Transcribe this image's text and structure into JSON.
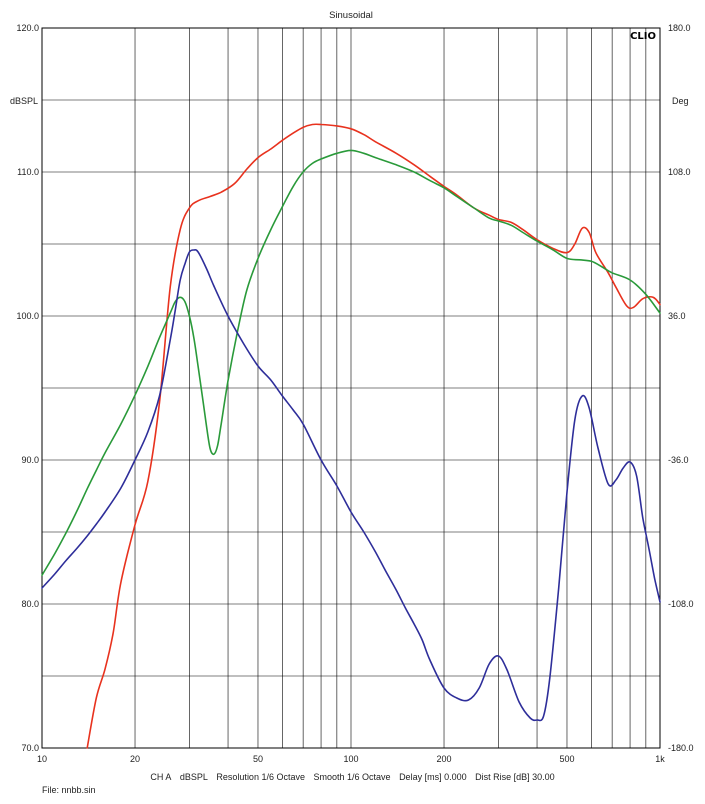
{
  "chart_data": {
    "type": "line",
    "title": "Sinusoidal",
    "brand": "CLIO",
    "x_scale": "log",
    "xlim": [
      10,
      1000
    ],
    "x_ticks": [
      {
        "v": 10,
        "label": "10"
      },
      {
        "v": 20,
        "label": "20"
      },
      {
        "v": 50,
        "label": "50"
      },
      {
        "v": 100,
        "label": "100"
      },
      {
        "v": 200,
        "label": "200"
      },
      {
        "v": 500,
        "label": "500"
      },
      {
        "v": 1000,
        "label": "1k"
      }
    ],
    "ylabel_left": "dBSPL",
    "ylim_left": [
      70,
      120
    ],
    "y_ticks_left": [
      "70.0",
      "80.0",
      "90.0",
      "100.0",
      "110.0",
      "120.0"
    ],
    "ylabel_right": "Deg",
    "ylim_right": [
      -180,
      180
    ],
    "y_ticks_right": [
      "-180.0",
      "-108.0",
      "-36.0",
      "36.0",
      "108.0",
      "180.0"
    ],
    "grid": true,
    "series": [
      {
        "color": "#e8321e",
        "axis": "left",
        "points": [
          [
            14,
            70
          ],
          [
            15,
            73.5
          ],
          [
            16,
            75.5
          ],
          [
            17,
            78
          ],
          [
            18,
            81.5
          ],
          [
            20,
            85.5
          ],
          [
            22,
            88.5
          ],
          [
            24,
            94
          ],
          [
            26,
            102
          ],
          [
            28,
            106
          ],
          [
            30,
            107.5
          ],
          [
            32,
            108
          ],
          [
            35,
            108.3
          ],
          [
            38,
            108.6
          ],
          [
            42,
            109.2
          ],
          [
            46,
            110.2
          ],
          [
            50,
            111
          ],
          [
            55,
            111.6
          ],
          [
            60,
            112.2
          ],
          [
            65,
            112.7
          ],
          [
            70,
            113.1
          ],
          [
            75,
            113.3
          ],
          [
            80,
            113.3
          ],
          [
            90,
            113.2
          ],
          [
            100,
            113
          ],
          [
            110,
            112.6
          ],
          [
            120,
            112.1
          ],
          [
            140,
            111.3
          ],
          [
            160,
            110.5
          ],
          [
            180,
            109.7
          ],
          [
            200,
            109
          ],
          [
            220,
            108.4
          ],
          [
            250,
            107.5
          ],
          [
            280,
            107
          ],
          [
            300,
            106.7
          ],
          [
            330,
            106.5
          ],
          [
            360,
            106
          ],
          [
            400,
            105.3
          ],
          [
            450,
            104.7
          ],
          [
            500,
            104.4
          ],
          [
            530,
            105
          ],
          [
            560,
            106.1
          ],
          [
            590,
            105.8
          ],
          [
            620,
            104.4
          ],
          [
            680,
            103
          ],
          [
            720,
            102
          ],
          [
            780,
            100.7
          ],
          [
            820,
            100.6
          ],
          [
            880,
            101.2
          ],
          [
            950,
            101.3
          ],
          [
            1000,
            100.8
          ]
        ]
      },
      {
        "color": "#2a9a3a",
        "axis": "left",
        "points": [
          [
            10,
            82
          ],
          [
            11,
            83.5
          ],
          [
            12,
            85
          ],
          [
            13,
            86.5
          ],
          [
            14,
            88
          ],
          [
            15,
            89.3
          ],
          [
            16,
            90.5
          ],
          [
            18,
            92.5
          ],
          [
            20,
            94.5
          ],
          [
            22,
            96.5
          ],
          [
            24,
            98.5
          ],
          [
            26,
            100.2
          ],
          [
            27,
            101
          ],
          [
            28,
            101.3
          ],
          [
            29,
            101
          ],
          [
            30,
            100
          ],
          [
            31,
            98.5
          ],
          [
            32,
            96.5
          ],
          [
            33,
            94.5
          ],
          [
            34,
            92.5
          ],
          [
            35,
            90.8
          ],
          [
            36,
            90.4
          ],
          [
            37,
            91
          ],
          [
            38,
            92.5
          ],
          [
            40,
            95.5
          ],
          [
            43,
            99
          ],
          [
            46,
            101.8
          ],
          [
            50,
            104
          ],
          [
            55,
            106
          ],
          [
            60,
            107.6
          ],
          [
            65,
            109
          ],
          [
            70,
            110
          ],
          [
            75,
            110.6
          ],
          [
            80,
            110.9
          ],
          [
            90,
            111.3
          ],
          [
            100,
            111.5
          ],
          [
            110,
            111.3
          ],
          [
            120,
            111
          ],
          [
            140,
            110.5
          ],
          [
            160,
            110
          ],
          [
            180,
            109.4
          ],
          [
            200,
            108.9
          ],
          [
            220,
            108.3
          ],
          [
            250,
            107.5
          ],
          [
            280,
            106.8
          ],
          [
            300,
            106.6
          ],
          [
            330,
            106.3
          ],
          [
            360,
            105.8
          ],
          [
            400,
            105.2
          ],
          [
            450,
            104.6
          ],
          [
            500,
            104
          ],
          [
            550,
            103.9
          ],
          [
            600,
            103.8
          ],
          [
            650,
            103.4
          ],
          [
            700,
            103
          ],
          [
            800,
            102.5
          ],
          [
            900,
            101.5
          ],
          [
            1000,
            100.2
          ]
        ]
      },
      {
        "color": "#2e2e9a",
        "axis": "right",
        "points": [
          [
            10,
            -100
          ],
          [
            11,
            -93
          ],
          [
            12,
            -86
          ],
          [
            13,
            -80
          ],
          [
            14,
            -74
          ],
          [
            15,
            -68
          ],
          [
            16,
            -62
          ],
          [
            18,
            -50
          ],
          [
            20,
            -36
          ],
          [
            22,
            -22
          ],
          [
            24,
            -4
          ],
          [
            26,
            24
          ],
          [
            27,
            39
          ],
          [
            28,
            54
          ],
          [
            29,
            62
          ],
          [
            30,
            68
          ],
          [
            31,
            69
          ],
          [
            32,
            68
          ],
          [
            34,
            60
          ],
          [
            36,
            51
          ],
          [
            40,
            36
          ],
          [
            45,
            22
          ],
          [
            50,
            11
          ],
          [
            55,
            4
          ],
          [
            60,
            -4
          ],
          [
            65,
            -11
          ],
          [
            70,
            -18
          ],
          [
            80,
            -36
          ],
          [
            90,
            -49
          ],
          [
            100,
            -62
          ],
          [
            110,
            -72
          ],
          [
            120,
            -82
          ],
          [
            130,
            -92
          ],
          [
            140,
            -101
          ],
          [
            150,
            -110
          ],
          [
            160,
            -118
          ],
          [
            170,
            -126
          ],
          [
            180,
            -136
          ],
          [
            200,
            -150
          ],
          [
            220,
            -155
          ],
          [
            240,
            -156
          ],
          [
            260,
            -150
          ],
          [
            280,
            -138
          ],
          [
            300,
            -134
          ],
          [
            320,
            -141
          ],
          [
            350,
            -157
          ],
          [
            380,
            -165
          ],
          [
            400,
            -166
          ],
          [
            420,
            -164
          ],
          [
            440,
            -145
          ],
          [
            470,
            -100
          ],
          [
            500,
            -52
          ],
          [
            530,
            -16
          ],
          [
            560,
            -4
          ],
          [
            590,
            -10
          ],
          [
            630,
            -30
          ],
          [
            680,
            -48
          ],
          [
            720,
            -46
          ],
          [
            760,
            -40
          ],
          [
            800,
            -37
          ],
          [
            840,
            -44
          ],
          [
            880,
            -65
          ],
          [
            920,
            -80
          ],
          [
            960,
            -95
          ],
          [
            1000,
            -107
          ]
        ]
      }
    ]
  },
  "status": {
    "channel": "CH A",
    "units": "dBSPL",
    "resolution": "Resolution 1/6 Octave",
    "smooth": "Smooth 1/6 Octave",
    "delay": "Delay [ms] 0.000",
    "dist_rise": "Dist Rise [dB] 30.00"
  },
  "file": "File: nnbb.sin"
}
